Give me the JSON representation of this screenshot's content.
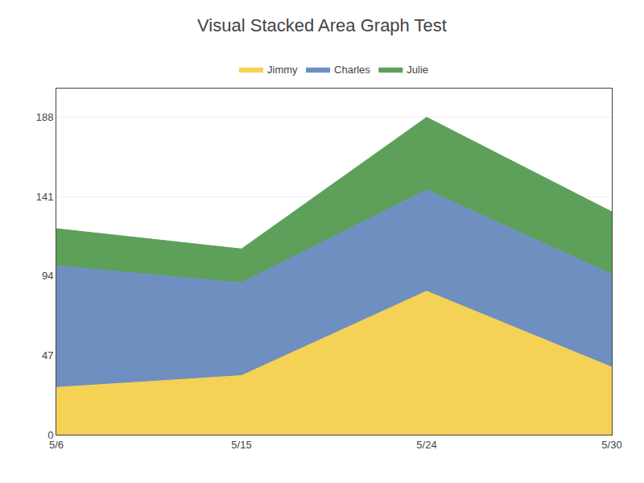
{
  "chart_data": {
    "type": "area",
    "title": "Visual Stacked Area Graph Test",
    "categories": [
      "5/6",
      "5/15",
      "5/24",
      "5/30"
    ],
    "series": [
      {
        "name": "Jimmy",
        "color": "#F5D155",
        "values": [
          28,
          35,
          85,
          40
        ]
      },
      {
        "name": "Charles",
        "color": "#6E8FC0",
        "values": [
          72,
          55,
          60,
          55
        ]
      },
      {
        "name": "Julie",
        "color": "#5DA05A",
        "values": [
          22,
          20,
          43,
          37
        ]
      }
    ],
    "stacked": true,
    "ylim": [
      0,
      205
    ],
    "yticks": [
      0,
      47,
      94,
      141,
      188
    ],
    "grid": true,
    "legend": "top"
  }
}
